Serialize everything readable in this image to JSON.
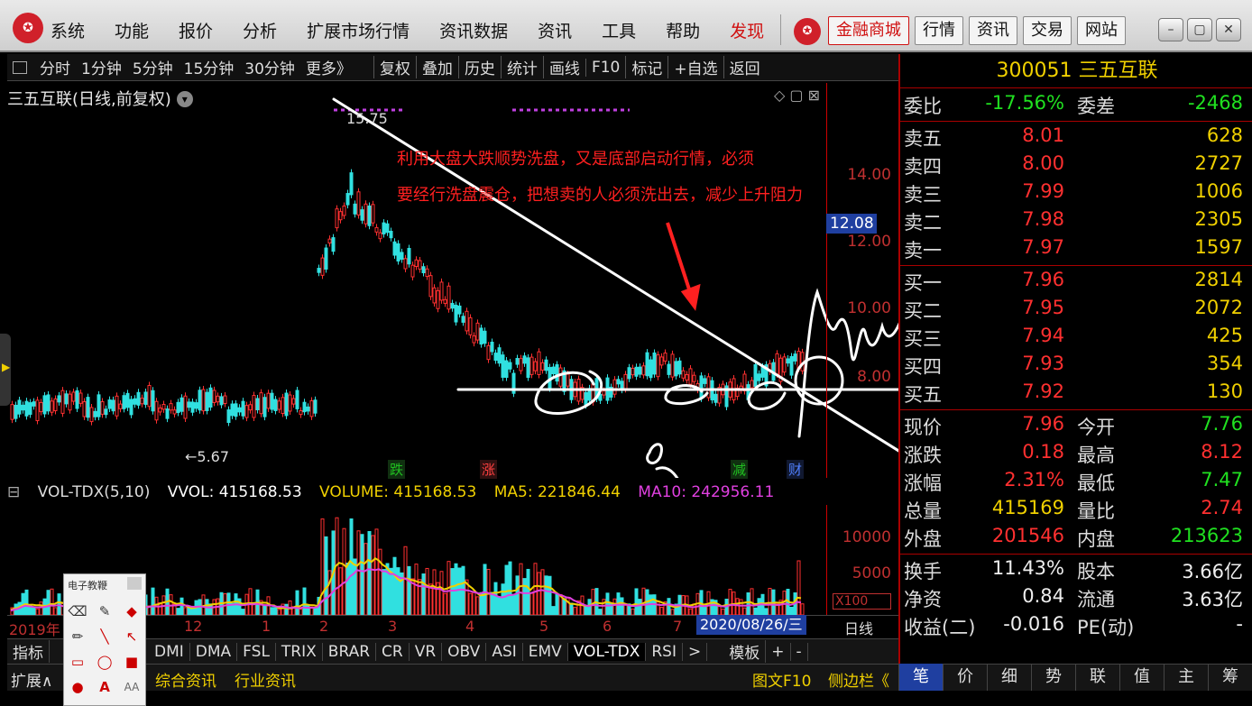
{
  "menu": {
    "items": [
      "系统",
      "功能",
      "报价",
      "分析",
      "扩展市场行情",
      "资讯数据",
      "资讯",
      "工具",
      "帮助"
    ],
    "discover": "发现"
  },
  "top_buttons": {
    "mall": "金融商城",
    "quotes": "行情",
    "news": "资讯",
    "trade": "交易",
    "site": "网站"
  },
  "toolbar": {
    "periods": [
      "分时",
      "1分钟",
      "5分钟",
      "15分钟",
      "30分钟",
      "更多》"
    ],
    "actions": [
      "复权",
      "叠加",
      "历史",
      "统计",
      "画线",
      "F10",
      "标记",
      "+自选",
      "返回"
    ]
  },
  "chart": {
    "title": "三五互联(日线,前复权)",
    "high_label": "15.75",
    "low_label": "5.67",
    "current_price": "12.08",
    "price_ticks": [
      "14.00",
      "12.00",
      "10.00",
      "8.00"
    ],
    "events": [
      {
        "text": "跌",
        "color": "#20c020"
      },
      {
        "text": "涨",
        "color": "#ff4040"
      },
      {
        "text": "减",
        "color": "#20c020"
      },
      {
        "text": "财",
        "color": "#5080ff"
      }
    ],
    "annotation_line1": "利用大盘大跌顺势洗盘，又是底部启动行情，必须",
    "annotation_line2": "要经行洗盘震仓，把想卖的人必须洗出去，减少上升阻力"
  },
  "volume": {
    "name": "VOL-TDX(5,10)",
    "vvol": "VVOL: 415168.53",
    "volume": "VOLUME: 415168.53",
    "ma5": "MA5: 221846.44",
    "ma10": "MA10: 242956.11",
    "ticks": [
      "10000",
      "5000",
      "X100"
    ],
    "colors": {
      "vvol": "#ffffff",
      "volume": "#f0d000",
      "ma5": "#f0d000",
      "ma10": "#e040e0"
    }
  },
  "dates": {
    "ticks": [
      "2019年",
      "12",
      "1",
      "2",
      "3",
      "4",
      "5",
      "6",
      "7"
    ],
    "selected": "2020/08/26/三",
    "kline": "日线"
  },
  "indicator_tabs": [
    "指标",
    "DMI",
    "DMA",
    "FSL",
    "TRIX",
    "BRAR",
    "CR",
    "VR",
    "OBV",
    "ASI",
    "EMV",
    "VOL-TDX",
    "RSI",
    ">",
    "模板",
    "+",
    "-"
  ],
  "bottom_bar": {
    "expand": "扩展∧",
    "comprehensive": "综合资讯",
    "industry": "行业资讯",
    "f10": "图文F10",
    "sidebar": "侧边栏《"
  },
  "quote": {
    "code": "300051",
    "name": "三五互联",
    "ratio_label": "委比",
    "ratio": "-17.56%",
    "diff_label": "委差",
    "diff": "-2468",
    "asks": [
      {
        "label": "卖五",
        "price": "8.01",
        "vol": "628"
      },
      {
        "label": "卖四",
        "price": "8.00",
        "vol": "2727"
      },
      {
        "label": "卖三",
        "price": "7.99",
        "vol": "1006"
      },
      {
        "label": "卖二",
        "price": "7.98",
        "vol": "2305"
      },
      {
        "label": "卖一",
        "price": "7.97",
        "vol": "1597"
      }
    ],
    "bids": [
      {
        "label": "买一",
        "price": "7.96",
        "vol": "2814"
      },
      {
        "label": "买二",
        "price": "7.95",
        "vol": "2072"
      },
      {
        "label": "买三",
        "price": "7.94",
        "vol": "425"
      },
      {
        "label": "买四",
        "price": "7.93",
        "vol": "354"
      },
      {
        "label": "买五",
        "price": "7.92",
        "vol": "130"
      }
    ],
    "stats": [
      {
        "l1": "现价",
        "v1": "7.96",
        "c1": "red",
        "l2": "今开",
        "v2": "7.76",
        "c2": "green"
      },
      {
        "l1": "涨跌",
        "v1": "0.18",
        "c1": "red",
        "l2": "最高",
        "v2": "8.12",
        "c2": "red"
      },
      {
        "l1": "涨幅",
        "v1": "2.31%",
        "c1": "red",
        "l2": "最低",
        "v2": "7.47",
        "c2": "green"
      },
      {
        "l1": "总量",
        "v1": "415169",
        "c1": "yellow",
        "l2": "量比",
        "v2": "2.74",
        "c2": "red"
      },
      {
        "l1": "外盘",
        "v1": "201546",
        "c1": "red",
        "l2": "内盘",
        "v2": "213623",
        "c2": "green"
      }
    ],
    "fund": [
      {
        "l1": "换手",
        "v1": "11.43%",
        "l2": "股本",
        "v2": "3.66亿"
      },
      {
        "l1": "净资",
        "v1": "0.84",
        "l2": "流通",
        "v2": "3.63亿"
      },
      {
        "l1": "收益(二)",
        "v1": "-0.016",
        "l2": "PE(动)",
        "v2": "-"
      }
    ]
  },
  "side_tabs": [
    "笔",
    "价",
    "细",
    "势",
    "联",
    "值",
    "主",
    "筹"
  ],
  "palette": {
    "title": "电子教鞭"
  }
}
